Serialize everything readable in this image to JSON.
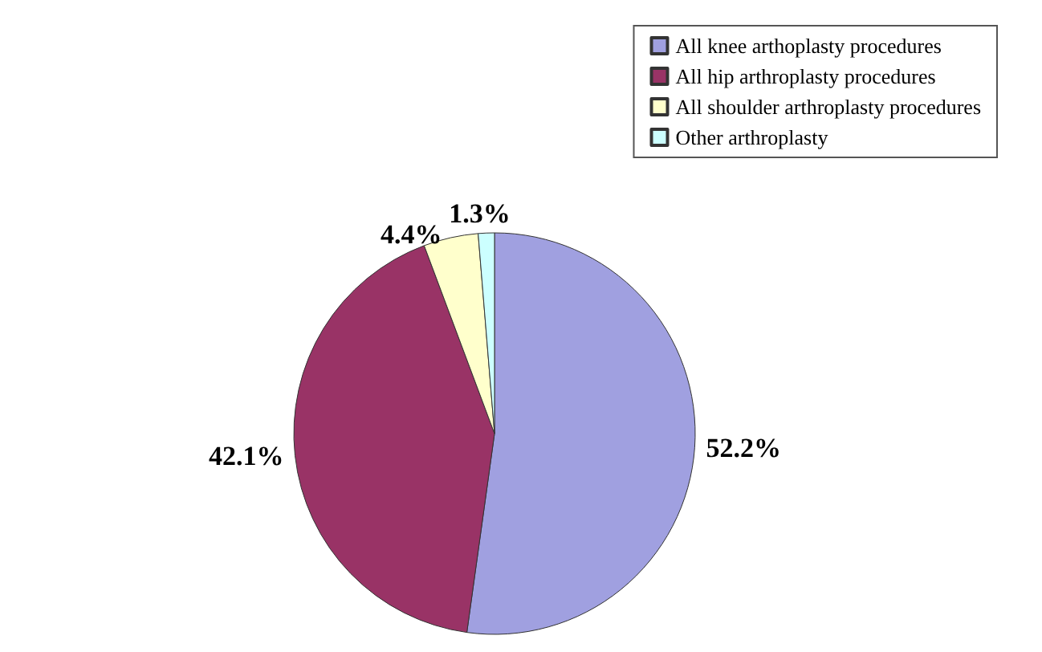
{
  "chart_data": {
    "type": "pie",
    "categories": [
      "All knee arthoplasty procedures",
      "All hip arthroplasty procedures",
      "All shoulder arthroplasty procedures",
      "Other arthroplasty"
    ],
    "values": [
      52.2,
      42.1,
      4.4,
      1.3
    ],
    "colors": [
      "#a0a0e0",
      "#993366",
      "#ffffcc",
      "#ccffff"
    ],
    "value_labels": [
      "52.2%",
      "42.1%",
      "4.4%",
      "1.3%"
    ],
    "legend": "top right"
  }
}
